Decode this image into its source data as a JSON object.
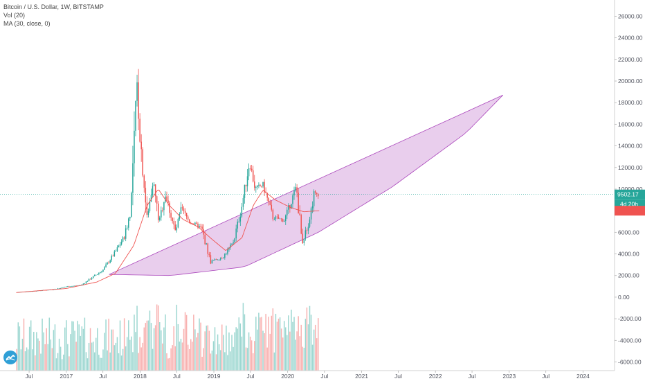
{
  "legend": {
    "title": "Bitcoin / U.S. Dollar, 1W, BITSTAMP",
    "volume": "Vol (20)",
    "ma": "MA (30, close, 0)"
  },
  "price_tag": {
    "value": "9502.17",
    "countdown": "4d 20h",
    "ma_value": 8000
  },
  "colors": {
    "up": "#26a69a",
    "down": "#ef5350",
    "ma_line": "#ef5350",
    "channel_fill": "#ce93d8",
    "channel_stroke": "#ab47bc",
    "tag_green": "#26a69a",
    "tag_red": "#ef5350"
  },
  "chart_data": {
    "type": "candlestick",
    "series_label": "BTC/USD weekly",
    "y_ticks": [
      "26000.00",
      "24000.00",
      "22000.00",
      "20000.00",
      "18000.00",
      "16000.00",
      "14000.00",
      "12000.00",
      "10000.00",
      "8000.00",
      "6000.00",
      "4000.00",
      "2000.00",
      "0.00",
      "-2000.00",
      "-4000.00",
      "-6000.00"
    ],
    "x_ticks": [
      "Jul",
      "2017",
      "Jul",
      "2018",
      "Jul",
      "2019",
      "Jul",
      "2020",
      "Jul",
      "2021",
      "Jul",
      "2022",
      "Jul",
      "2023",
      "Jul",
      "2024"
    ],
    "price_anchors": [
      [
        "2016-05-01",
        450
      ],
      [
        "2016-08-01",
        580
      ],
      [
        "2016-11-01",
        720
      ],
      [
        "2017-01-01",
        980
      ],
      [
        "2017-03-15",
        1100
      ],
      [
        "2017-05-15",
        1900
      ],
      [
        "2017-07-01",
        2500
      ],
      [
        "2017-09-01",
        4200
      ],
      [
        "2017-10-15",
        5600
      ],
      [
        "2017-11-15",
        8000
      ],
      [
        "2017-12-17",
        19500
      ],
      [
        "2018-01-01",
        15000
      ],
      [
        "2018-02-05",
        7000
      ],
      [
        "2018-03-05",
        11000
      ],
      [
        "2018-04-05",
        6900
      ],
      [
        "2018-05-05",
        9600
      ],
      [
        "2018-06-25",
        6000
      ],
      [
        "2018-07-25",
        8200
      ],
      [
        "2018-09-01",
        7000
      ],
      [
        "2018-11-01",
        6400
      ],
      [
        "2018-12-15",
        3300
      ],
      [
        "2019-02-15",
        3700
      ],
      [
        "2019-04-05",
        5000
      ],
      [
        "2019-05-15",
        8000
      ],
      [
        "2019-06-26",
        12500
      ],
      [
        "2019-07-25",
        10000
      ],
      [
        "2019-09-01",
        10400
      ],
      [
        "2019-10-20",
        7400
      ],
      [
        "2019-12-15",
        7100
      ],
      [
        "2020-02-13",
        10200
      ],
      [
        "2020-03-12",
        5000
      ],
      [
        "2020-04-15",
        7000
      ],
      [
        "2020-05-10",
        9500
      ],
      [
        "2020-06-05",
        9600
      ]
    ],
    "ma_anchors": [
      [
        "2016-05-01",
        430
      ],
      [
        "2017-01-01",
        800
      ],
      [
        "2017-06-01",
        1400
      ],
      [
        "2017-09-01",
        2200
      ],
      [
        "2017-12-01",
        4800
      ],
      [
        "2018-02-05",
        8500
      ],
      [
        "2018-04-01",
        10000
      ],
      [
        "2018-05-25",
        8500
      ],
      [
        "2018-08-01",
        7200
      ],
      [
        "2018-10-15",
        6500
      ],
      [
        "2018-12-20",
        5400
      ],
      [
        "2019-03-01",
        4300
      ],
      [
        "2019-05-20",
        5500
      ],
      [
        "2019-07-15",
        8500
      ],
      [
        "2019-09-01",
        9900
      ],
      [
        "2019-11-01",
        9000
      ],
      [
        "2020-01-15",
        8300
      ],
      [
        "2020-03-20",
        7900
      ],
      [
        "2020-06-05",
        8000
      ]
    ],
    "volume_range": [
      0,
      6500
    ],
    "channel": {
      "upper": [
        [
          "2017-08-01",
          2100
        ],
        [
          "2022-12-01",
          18700
        ]
      ],
      "lower": [
        [
          "2017-08-01",
          2100
        ],
        [
          "2018-06-01",
          2000
        ],
        [
          "2019-06-01",
          2800
        ],
        [
          "2020-06-01",
          6000
        ],
        [
          "2021-06-01",
          10200
        ],
        [
          "2022-06-01",
          15200
        ],
        [
          "2022-12-01",
          18700
        ]
      ]
    },
    "x_range": [
      "2016-02-08",
      "2024-06-05"
    ],
    "y_range": [
      -6800,
      27500
    ],
    "grid": false,
    "legend_position": "top-left"
  }
}
